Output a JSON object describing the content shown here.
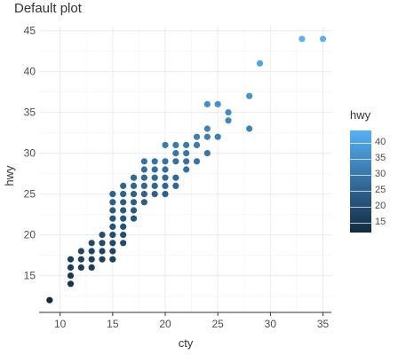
{
  "title": "Default plot",
  "chart_data": {
    "type": "scatter",
    "title": "Default plot",
    "xlabel": "cty",
    "ylabel": "hwy",
    "xlim": [
      8.0,
      35.8
    ],
    "ylim": [
      10.5,
      45.5
    ],
    "x_ticks": [
      10,
      15,
      20,
      25,
      30,
      35
    ],
    "y_ticks": [
      15,
      20,
      25,
      30,
      35,
      40,
      45
    ],
    "grid": true,
    "color_variable": "hwy",
    "color_scale": {
      "low": "#132B43",
      "high": "#56B1F7",
      "min": 12,
      "max": 44
    },
    "legend": {
      "title": "hwy",
      "ticks": [
        15,
        20,
        25,
        30,
        35,
        40
      ],
      "placement": "right"
    },
    "points": [
      {
        "x": 9,
        "y": 12
      },
      {
        "x": 11,
        "y": 14
      },
      {
        "x": 11,
        "y": 15
      },
      {
        "x": 11,
        "y": 16
      },
      {
        "x": 11,
        "y": 17
      },
      {
        "x": 12,
        "y": 16
      },
      {
        "x": 12,
        "y": 17
      },
      {
        "x": 12,
        "y": 18
      },
      {
        "x": 13,
        "y": 16
      },
      {
        "x": 13,
        "y": 17
      },
      {
        "x": 13,
        "y": 18
      },
      {
        "x": 13,
        "y": 19
      },
      {
        "x": 14,
        "y": 17
      },
      {
        "x": 14,
        "y": 18
      },
      {
        "x": 14,
        "y": 19
      },
      {
        "x": 14,
        "y": 20
      },
      {
        "x": 15,
        "y": 17
      },
      {
        "x": 15,
        "y": 18
      },
      {
        "x": 15,
        "y": 19
      },
      {
        "x": 15,
        "y": 20
      },
      {
        "x": 15,
        "y": 21
      },
      {
        "x": 15,
        "y": 22
      },
      {
        "x": 15,
        "y": 23
      },
      {
        "x": 15,
        "y": 24
      },
      {
        "x": 15,
        "y": 25
      },
      {
        "x": 16,
        "y": 19
      },
      {
        "x": 16,
        "y": 20
      },
      {
        "x": 16,
        "y": 21
      },
      {
        "x": 16,
        "y": 22
      },
      {
        "x": 16,
        "y": 23
      },
      {
        "x": 16,
        "y": 24
      },
      {
        "x": 16,
        "y": 25
      },
      {
        "x": 16,
        "y": 26
      },
      {
        "x": 17,
        "y": 22
      },
      {
        "x": 17,
        "y": 23
      },
      {
        "x": 17,
        "y": 24
      },
      {
        "x": 17,
        "y": 25
      },
      {
        "x": 17,
        "y": 26
      },
      {
        "x": 17,
        "y": 27
      },
      {
        "x": 18,
        "y": 24
      },
      {
        "x": 18,
        "y": 25
      },
      {
        "x": 18,
        "y": 26
      },
      {
        "x": 18,
        "y": 27
      },
      {
        "x": 18,
        "y": 28
      },
      {
        "x": 18,
        "y": 29
      },
      {
        "x": 19,
        "y": 25
      },
      {
        "x": 19,
        "y": 26
      },
      {
        "x": 19,
        "y": 27
      },
      {
        "x": 19,
        "y": 28
      },
      {
        "x": 19,
        "y": 29
      },
      {
        "x": 20,
        "y": 25
      },
      {
        "x": 20,
        "y": 26
      },
      {
        "x": 20,
        "y": 27
      },
      {
        "x": 20,
        "y": 28
      },
      {
        "x": 20,
        "y": 29
      },
      {
        "x": 20,
        "y": 31
      },
      {
        "x": 21,
        "y": 26
      },
      {
        "x": 21,
        "y": 27
      },
      {
        "x": 21,
        "y": 29
      },
      {
        "x": 21,
        "y": 30
      },
      {
        "x": 21,
        "y": 31
      },
      {
        "x": 22,
        "y": 28
      },
      {
        "x": 22,
        "y": 29
      },
      {
        "x": 22,
        "y": 30
      },
      {
        "x": 22,
        "y": 31
      },
      {
        "x": 23,
        "y": 29
      },
      {
        "x": 23,
        "y": 31
      },
      {
        "x": 23,
        "y": 32
      },
      {
        "x": 24,
        "y": 30
      },
      {
        "x": 24,
        "y": 32
      },
      {
        "x": 24,
        "y": 33
      },
      {
        "x": 24,
        "y": 36
      },
      {
        "x": 25,
        "y": 32
      },
      {
        "x": 25,
        "y": 36
      },
      {
        "x": 26,
        "y": 34
      },
      {
        "x": 26,
        "y": 35
      },
      {
        "x": 28,
        "y": 33
      },
      {
        "x": 28,
        "y": 37
      },
      {
        "x": 29,
        "y": 41
      },
      {
        "x": 33,
        "y": 44
      },
      {
        "x": 35,
        "y": 44
      }
    ]
  }
}
